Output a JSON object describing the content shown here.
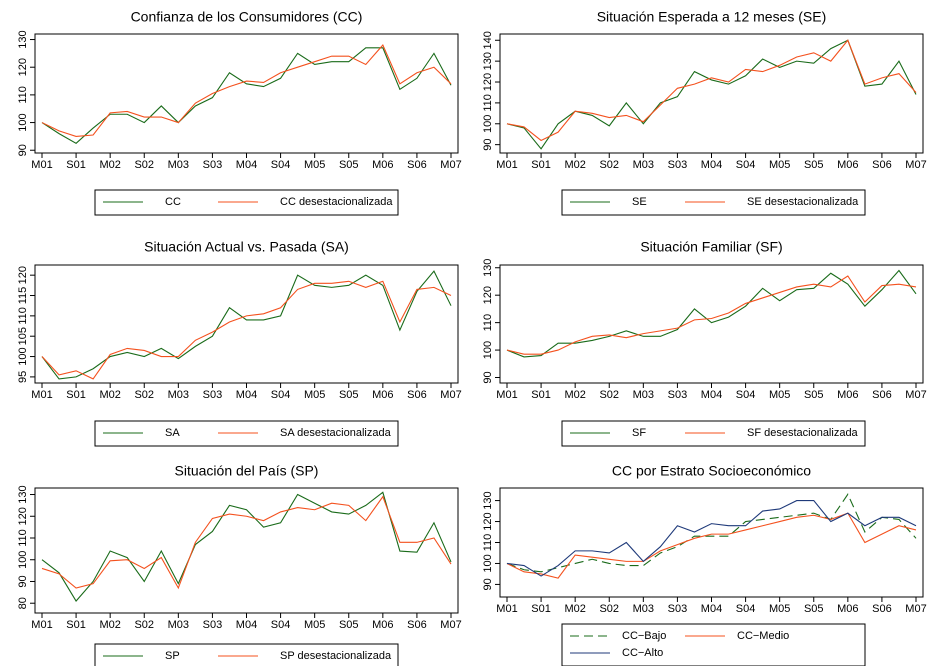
{
  "chart_data": [
    {
      "type": "line",
      "title": "Confianza de los Consumidores (CC)",
      "categories": [
        "M01",
        null,
        "S01",
        null,
        "M02",
        null,
        "S02",
        null,
        "M03",
        null,
        "S03",
        null,
        "M04",
        null,
        "S04",
        null,
        "M05",
        null,
        "S05",
        null,
        "M06",
        null,
        "S06",
        null,
        "M07"
      ],
      "ylim": [
        89,
        132
      ],
      "yticks": [
        90,
        100,
        110,
        120,
        130
      ],
      "series": [
        {
          "name": "CC",
          "color": "#1a6b1a",
          "values": [
            100,
            96,
            92.5,
            98,
            103,
            103,
            100,
            106,
            100,
            106,
            109,
            118,
            114,
            113,
            116,
            125,
            121,
            122,
            122,
            127,
            127,
            112,
            116,
            125,
            113.5
          ]
        },
        {
          "name": "CC desestacionalizada",
          "color": "#f4511e",
          "values": [
            100,
            97,
            95,
            95.5,
            103.5,
            104,
            102,
            102,
            100,
            107,
            110.5,
            113,
            115,
            114.5,
            118,
            120,
            122,
            124,
            124,
            121,
            128,
            114,
            118,
            120,
            114
          ]
        }
      ]
    },
    {
      "type": "line",
      "title": "Situación Esperada a 12 meses (SE)",
      "categories": [
        "M01",
        null,
        "S01",
        null,
        "M02",
        null,
        "S02",
        null,
        "M03",
        null,
        "S03",
        null,
        "M04",
        null,
        "S04",
        null,
        "M05",
        null,
        "S05",
        null,
        "M06",
        null,
        "S06",
        null,
        "M07"
      ],
      "ylim": [
        86,
        143
      ],
      "yticks": [
        90,
        100,
        110,
        120,
        130,
        140
      ],
      "series": [
        {
          "name": "SE",
          "color": "#1a6b1a",
          "values": [
            100,
            98,
            88,
            100,
            106,
            104,
            99,
            110,
            100,
            110,
            113,
            125,
            121,
            119,
            123,
            131,
            127,
            130,
            129,
            136,
            140,
            118,
            119,
            130,
            114
          ]
        },
        {
          "name": "SE desestacionalizada",
          "color": "#f4511e",
          "values": [
            100,
            98.5,
            92,
            96,
            106,
            105,
            103,
            104,
            101,
            109,
            117,
            119,
            122,
            120,
            126,
            125,
            128,
            132,
            134,
            130,
            140,
            119,
            122,
            124,
            115
          ]
        }
      ]
    },
    {
      "type": "line",
      "title": "Situación Actual vs. Pasada (SA)",
      "categories": [
        "M01",
        null,
        "S01",
        null,
        "M02",
        null,
        "S02",
        null,
        "M03",
        null,
        "S03",
        null,
        "M04",
        null,
        "S04",
        null,
        "M05",
        null,
        "S05",
        null,
        "M06",
        null,
        "S06",
        null,
        "M07"
      ],
      "ylim": [
        93.5,
        122.5
      ],
      "yticks": [
        95,
        100,
        105,
        110,
        115,
        120
      ],
      "series": [
        {
          "name": "SA",
          "color": "#1a6b1a",
          "values": [
            100,
            94.5,
            95,
            97,
            100,
            101,
            100,
            102,
            99.5,
            102.5,
            105,
            112,
            109,
            109,
            110,
            120,
            117.5,
            117,
            117.5,
            120,
            117.5,
            106.5,
            116,
            121,
            112.5
          ]
        },
        {
          "name": "SA desestacionalizada",
          "color": "#f4511e",
          "values": [
            100,
            95.5,
            96.5,
            94.5,
            100.5,
            102,
            101.5,
            100,
            100,
            104,
            106,
            108.5,
            110,
            110.5,
            112,
            116.5,
            118,
            118,
            118.5,
            117,
            118.5,
            108.5,
            116.5,
            117,
            115
          ]
        }
      ]
    },
    {
      "type": "line",
      "title": "Situación Familiar (SF)",
      "categories": [
        "M01",
        null,
        "S01",
        null,
        "M02",
        null,
        "S02",
        null,
        "M03",
        null,
        "S03",
        null,
        "M04",
        null,
        "S04",
        null,
        "M05",
        null,
        "S05",
        null,
        "M06",
        null,
        "S06",
        null,
        "M07"
      ],
      "ylim": [
        88,
        131
      ],
      "yticks": [
        90,
        100,
        110,
        120,
        130
      ],
      "series": [
        {
          "name": "SF",
          "color": "#1a6b1a",
          "values": [
            100,
            97.5,
            98,
            102.5,
            102.5,
            103.5,
            105,
            107,
            105,
            105,
            107.5,
            115,
            110,
            112,
            116,
            122.5,
            118,
            122,
            122.5,
            128,
            124,
            116,
            122,
            129,
            120.5
          ]
        },
        {
          "name": "SF desestacionalizada",
          "color": "#f4511e",
          "values": [
            100,
            98.5,
            98.5,
            100,
            103,
            105,
            105.5,
            104.5,
            106,
            107,
            108,
            111,
            111.5,
            113.5,
            117,
            119,
            121,
            123,
            124,
            123,
            127,
            117.5,
            123.5,
            124,
            123
          ]
        }
      ]
    },
    {
      "type": "line",
      "title": "Situación del País (SP)",
      "categories": [
        "M01",
        null,
        "S01",
        null,
        "M02",
        null,
        "S02",
        null,
        "M03",
        null,
        "S03",
        null,
        "M04",
        null,
        "S04",
        null,
        "M05",
        null,
        "S05",
        null,
        "M06",
        null,
        "S06",
        null,
        "M07"
      ],
      "ylim": [
        75.5,
        133
      ],
      "yticks": [
        80,
        90,
        100,
        110,
        120,
        130
      ],
      "series": [
        {
          "name": "SP",
          "color": "#1a6b1a",
          "values": [
            100,
            94,
            81,
            90,
            104,
            101,
            90,
            104,
            89,
            107,
            113,
            125,
            123,
            115,
            117,
            130,
            126,
            122,
            121,
            125,
            131,
            104,
            103.5,
            117,
            99
          ]
        },
        {
          "name": "SP desestacionalizada",
          "color": "#f4511e",
          "values": [
            96,
            93.5,
            87,
            89,
            99.5,
            100,
            96,
            101,
            87,
            108,
            119,
            121,
            120,
            118,
            122,
            124,
            123,
            126,
            125,
            118,
            129,
            108,
            108,
            110,
            98
          ]
        }
      ]
    },
    {
      "type": "line",
      "title": "CC por Estrato Socioeconómico",
      "categories": [
        "M01",
        null,
        "S01",
        null,
        "M02",
        null,
        "S02",
        null,
        "M03",
        null,
        "S03",
        null,
        "M04",
        null,
        "S04",
        null,
        "M05",
        null,
        "S05",
        null,
        "M06",
        null,
        "S06",
        null,
        "M07"
      ],
      "ylim": [
        84,
        136
      ],
      "yticks": [
        90,
        100,
        110,
        120,
        130
      ],
      "series": [
        {
          "name": "CC−Bajo",
          "color": "#1a6b1a",
          "linestyle": "dashed",
          "values": [
            100,
            97,
            96,
            98,
            100,
            102,
            100,
            99,
            99,
            105,
            108,
            113,
            113,
            113,
            120,
            121,
            122,
            123,
            124,
            121,
            133,
            115,
            122,
            121,
            112
          ]
        },
        {
          "name": "CC−Medio",
          "color": "#f4511e",
          "linestyle": "solid",
          "values": [
            100,
            96,
            95,
            93,
            104,
            103,
            102,
            101,
            101,
            106,
            109,
            112,
            114,
            114,
            116,
            118,
            120,
            122,
            123,
            121,
            124,
            110,
            114,
            118,
            116
          ]
        },
        {
          "name": "CC−Alto",
          "color": "#1f3a7a",
          "linestyle": "solid",
          "values": [
            100,
            99,
            94,
            99,
            106,
            106,
            105,
            110,
            101,
            108,
            118,
            115,
            119,
            118,
            118,
            125,
            126,
            130,
            130,
            120,
            124,
            118,
            122,
            122,
            118
          ]
        }
      ]
    }
  ]
}
